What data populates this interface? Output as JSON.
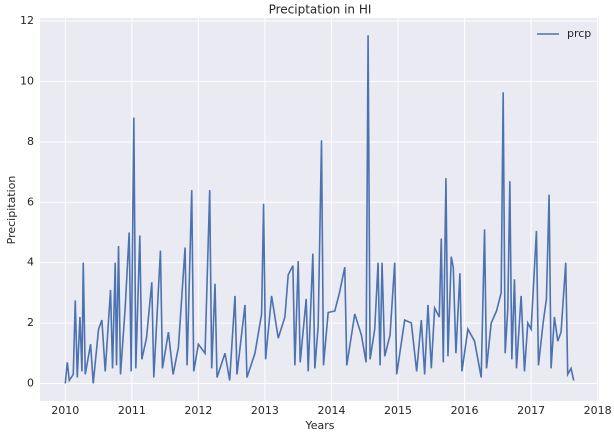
{
  "chart_data": {
    "type": "line",
    "title": "Preciptation in HI",
    "x_label": "Years",
    "y_label": "Precipitation",
    "x": [
      2010.0,
      2010.03,
      2010.06,
      2010.12,
      2010.15,
      2010.18,
      2010.22,
      2010.25,
      2010.27,
      2010.3,
      2010.38,
      2010.42,
      2010.5,
      2010.55,
      2010.6,
      2010.68,
      2010.71,
      2010.75,
      2010.77,
      2010.8,
      2010.83,
      2010.9,
      2010.96,
      2010.99,
      2011.03,
      2011.06,
      2011.12,
      2011.15,
      2011.22,
      2011.3,
      2011.33,
      2011.43,
      2011.46,
      2011.55,
      2011.62,
      2011.7,
      2011.8,
      2011.83,
      2011.9,
      2011.93,
      2012.0,
      2012.1,
      2012.17,
      2012.2,
      2012.25,
      2012.28,
      2012.4,
      2012.47,
      2012.55,
      2012.58,
      2012.7,
      2012.73,
      2012.85,
      2012.95,
      2012.98,
      2013.01,
      2013.1,
      2013.2,
      2013.3,
      2013.35,
      2013.42,
      2013.45,
      2013.5,
      2013.53,
      2013.62,
      2013.65,
      2013.72,
      2013.75,
      2013.8,
      2013.85,
      2013.88,
      2013.95,
      2014.05,
      2014.12,
      2014.2,
      2014.23,
      2014.35,
      2014.45,
      2014.52,
      2014.55,
      2014.58,
      2014.65,
      2014.7,
      2014.73,
      2014.76,
      2014.8,
      2014.88,
      2014.95,
      2014.98,
      2015.1,
      2015.2,
      2015.28,
      2015.35,
      2015.4,
      2015.45,
      2015.5,
      2015.55,
      2015.62,
      2015.65,
      2015.68,
      2015.72,
      2015.75,
      2015.8,
      2015.83,
      2015.87,
      2015.93,
      2015.96,
      2016.05,
      2016.15,
      2016.25,
      2016.3,
      2016.33,
      2016.4,
      2016.48,
      2016.55,
      2016.58,
      2016.61,
      2016.65,
      2016.68,
      2016.71,
      2016.75,
      2016.78,
      2016.85,
      2016.9,
      2016.95,
      2017.0,
      2017.08,
      2017.11,
      2017.18,
      2017.23,
      2017.27,
      2017.3,
      2017.35,
      2017.4,
      2017.45,
      2017.52,
      2017.55,
      2017.6,
      2017.64
    ],
    "series": [
      {
        "name": "prcp",
        "color": "#4c72b0",
        "values": [
          0,
          0.7,
          0.1,
          0.3,
          2.75,
          0.2,
          2.2,
          0.4,
          4.0,
          0.3,
          1.3,
          0,
          1.8,
          2.1,
          0.4,
          3.1,
          0.5,
          4.0,
          0.6,
          4.55,
          0.3,
          2.5,
          5.0,
          0.4,
          8.8,
          0.5,
          4.9,
          0.8,
          1.5,
          3.35,
          0.2,
          4.4,
          0.5,
          1.7,
          0.3,
          1.2,
          4.5,
          0.6,
          6.4,
          0.4,
          1.3,
          1.0,
          6.4,
          0.5,
          3.3,
          0.2,
          1.0,
          0.1,
          2.9,
          0.3,
          2.6,
          0.2,
          1.0,
          2.3,
          5.95,
          0.8,
          2.9,
          1.5,
          2.2,
          3.6,
          3.9,
          0.6,
          4.05,
          0.7,
          2.8,
          0.4,
          4.3,
          0.5,
          1.9,
          8.05,
          0.6,
          2.35,
          2.4,
          3.0,
          3.85,
          0.6,
          2.3,
          1.6,
          0.7,
          11.53,
          0.8,
          1.8,
          4.0,
          0.6,
          4.0,
          0.9,
          1.6,
          4.0,
          0.3,
          2.1,
          2.0,
          0.4,
          2.1,
          0.3,
          2.6,
          0.5,
          2.5,
          2.2,
          4.8,
          0.7,
          6.8,
          0.9,
          4.2,
          3.85,
          1.0,
          3.65,
          0.4,
          1.8,
          1.4,
          0.2,
          5.1,
          0.5,
          2.0,
          2.4,
          3.0,
          9.64,
          1.0,
          2.5,
          6.7,
          0.8,
          3.45,
          0.5,
          2.9,
          0.4,
          2.0,
          1.8,
          5.05,
          0.6,
          2.0,
          2.8,
          6.25,
          0.5,
          2.2,
          1.4,
          1.7,
          4.0,
          0.3,
          0.5,
          0.1
        ]
      }
    ],
    "xlim": [
      2009.62,
      2018.02
    ],
    "xticks": [
      2010,
      2011,
      2012,
      2013,
      2014,
      2015,
      2016,
      2017,
      2018
    ],
    "ylim": [
      -0.58,
      12.1
    ],
    "yticks": [
      0,
      2,
      4,
      6,
      8,
      10,
      12
    ],
    "grid": true,
    "legend": "upper right"
  }
}
